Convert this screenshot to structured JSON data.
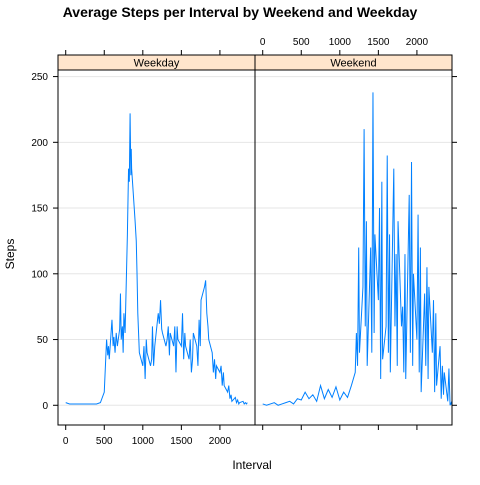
{
  "chart_data": {
    "type": "line",
    "title": "Average Steps per Interval by Weekend and Weekday",
    "xlabel": "Interval",
    "ylabel": "Steps",
    "xlim": [
      -100,
      2455
    ],
    "ylim": [
      -15,
      255
    ],
    "x_ticks": [
      0,
      500,
      1000,
      1500,
      2000
    ],
    "y_ticks": [
      0,
      50,
      100,
      150,
      200,
      250
    ],
    "grid": true,
    "strip_color": "#ffe5cc",
    "line_color": "#0080ff",
    "panels": [
      {
        "name": "Weekday",
        "points": [
          [
            0,
            2
          ],
          [
            50,
            1
          ],
          [
            100,
            1
          ],
          [
            150,
            1
          ],
          [
            200,
            1
          ],
          [
            250,
            1
          ],
          [
            300,
            1
          ],
          [
            350,
            1
          ],
          [
            400,
            1
          ],
          [
            450,
            2
          ],
          [
            500,
            10
          ],
          [
            530,
            50
          ],
          [
            545,
            38
          ],
          [
            555,
            45
          ],
          [
            565,
            35
          ],
          [
            600,
            65
          ],
          [
            615,
            45
          ],
          [
            625,
            52
          ],
          [
            640,
            40
          ],
          [
            655,
            55
          ],
          [
            670,
            45
          ],
          [
            700,
            58
          ],
          [
            710,
            85
          ],
          [
            720,
            50
          ],
          [
            735,
            60
          ],
          [
            745,
            40
          ],
          [
            755,
            70
          ],
          [
            770,
            55
          ],
          [
            800,
            130
          ],
          [
            815,
            180
          ],
          [
            825,
            170
          ],
          [
            835,
            222
          ],
          [
            845,
            175
          ],
          [
            850,
            195
          ],
          [
            855,
            180
          ],
          [
            900,
            140
          ],
          [
            915,
            125
          ],
          [
            925,
            100
          ],
          [
            935,
            70
          ],
          [
            945,
            55
          ],
          [
            955,
            40
          ],
          [
            1000,
            30
          ],
          [
            1015,
            45
          ],
          [
            1030,
            20
          ],
          [
            1045,
            50
          ],
          [
            1055,
            40
          ],
          [
            1100,
            30
          ],
          [
            1115,
            35
          ],
          [
            1125,
            60
          ],
          [
            1140,
            30
          ],
          [
            1155,
            45
          ],
          [
            1200,
            70
          ],
          [
            1215,
            62
          ],
          [
            1230,
            80
          ],
          [
            1245,
            58
          ],
          [
            1255,
            55
          ],
          [
            1300,
            45
          ],
          [
            1315,
            50
          ],
          [
            1330,
            60
          ],
          [
            1345,
            38
          ],
          [
            1355,
            55
          ],
          [
            1400,
            45
          ],
          [
            1415,
            60
          ],
          [
            1430,
            25
          ],
          [
            1445,
            60
          ],
          [
            1455,
            50
          ],
          [
            1500,
            45
          ],
          [
            1515,
            70
          ],
          [
            1530,
            35
          ],
          [
            1545,
            55
          ],
          [
            1555,
            45
          ],
          [
            1600,
            35
          ],
          [
            1615,
            50
          ],
          [
            1630,
            25
          ],
          [
            1645,
            35
          ],
          [
            1655,
            55
          ],
          [
            1700,
            45
          ],
          [
            1715,
            30
          ],
          [
            1730,
            65
          ],
          [
            1745,
            45
          ],
          [
            1755,
            80
          ],
          [
            1800,
            90
          ],
          [
            1815,
            95
          ],
          [
            1830,
            70
          ],
          [
            1845,
            60
          ],
          [
            1855,
            50
          ],
          [
            1900,
            40
          ],
          [
            1915,
            25
          ],
          [
            1930,
            35
          ],
          [
            1945,
            20
          ],
          [
            1955,
            30
          ],
          [
            2000,
            25
          ],
          [
            2015,
            30
          ],
          [
            2030,
            15
          ],
          [
            2045,
            25
          ],
          [
            2055,
            15
          ],
          [
            2100,
            10
          ],
          [
            2115,
            15
          ],
          [
            2130,
            5
          ],
          [
            2145,
            8
          ],
          [
            2155,
            3
          ],
          [
            2200,
            6
          ],
          [
            2215,
            2
          ],
          [
            2230,
            4
          ],
          [
            2245,
            1
          ],
          [
            2255,
            2
          ],
          [
            2300,
            3
          ],
          [
            2315,
            1
          ],
          [
            2330,
            2
          ],
          [
            2345,
            1
          ],
          [
            2355,
            2
          ]
        ]
      },
      {
        "name": "Weekend",
        "points": [
          [
            0,
            1
          ],
          [
            50,
            0
          ],
          [
            100,
            1
          ],
          [
            150,
            2
          ],
          [
            200,
            0
          ],
          [
            250,
            1
          ],
          [
            300,
            2
          ],
          [
            350,
            3
          ],
          [
            400,
            1
          ],
          [
            450,
            5
          ],
          [
            500,
            4
          ],
          [
            550,
            10
          ],
          [
            600,
            5
          ],
          [
            650,
            8
          ],
          [
            700,
            3
          ],
          [
            750,
            15
          ],
          [
            800,
            5
          ],
          [
            850,
            12
          ],
          [
            900,
            6
          ],
          [
            950,
            14
          ],
          [
            1000,
            4
          ],
          [
            1050,
            10
          ],
          [
            1100,
            6
          ],
          [
            1150,
            15
          ],
          [
            1200,
            25
          ],
          [
            1215,
            55
          ],
          [
            1230,
            30
          ],
          [
            1245,
            120
          ],
          [
            1255,
            40
          ],
          [
            1300,
            90
          ],
          [
            1315,
            210
          ],
          [
            1330,
            60
          ],
          [
            1345,
            140
          ],
          [
            1355,
            30
          ],
          [
            1400,
            120
          ],
          [
            1415,
            40
          ],
          [
            1430,
            238
          ],
          [
            1445,
            55
          ],
          [
            1455,
            130
          ],
          [
            1500,
            80
          ],
          [
            1515,
            150
          ],
          [
            1530,
            20
          ],
          [
            1545,
            170
          ],
          [
            1555,
            35
          ],
          [
            1600,
            60
          ],
          [
            1615,
            190
          ],
          [
            1630,
            40
          ],
          [
            1645,
            130
          ],
          [
            1655,
            25
          ],
          [
            1700,
            180
          ],
          [
            1715,
            60
          ],
          [
            1730,
            115
          ],
          [
            1745,
            30
          ],
          [
            1755,
            140
          ],
          [
            1800,
            60
          ],
          [
            1815,
            75
          ],
          [
            1830,
            25
          ],
          [
            1845,
            115
          ],
          [
            1855,
            20
          ],
          [
            1900,
            160
          ],
          [
            1915,
            40
          ],
          [
            1930,
            185
          ],
          [
            1945,
            30
          ],
          [
            1955,
            100
          ],
          [
            2000,
            50
          ],
          [
            2015,
            145
          ],
          [
            2030,
            25
          ],
          [
            2045,
            120
          ],
          [
            2055,
            10
          ],
          [
            2100,
            85
          ],
          [
            2115,
            30
          ],
          [
            2130,
            105
          ],
          [
            2145,
            20
          ],
          [
            2155,
            90
          ],
          [
            2200,
            40
          ],
          [
            2215,
            80
          ],
          [
            2230,
            10
          ],
          [
            2245,
            70
          ],
          [
            2255,
            15
          ],
          [
            2300,
            45
          ],
          [
            2315,
            5
          ],
          [
            2330,
            30
          ],
          [
            2345,
            8
          ],
          [
            2355,
            25
          ],
          [
            2400,
            3
          ],
          [
            2415,
            28
          ],
          [
            2430,
            0
          ],
          [
            2445,
            2
          ],
          [
            2455,
            0
          ]
        ]
      }
    ]
  }
}
